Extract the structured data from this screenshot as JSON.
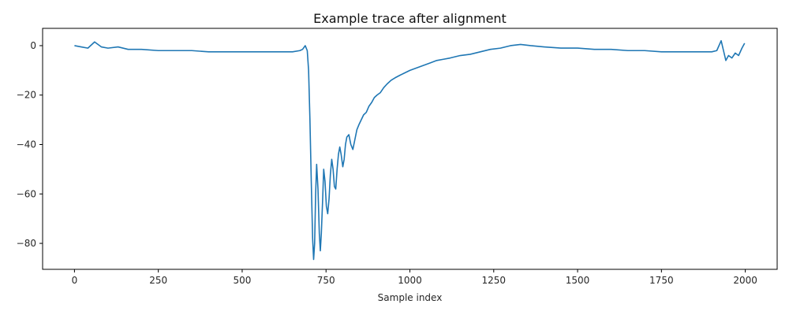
{
  "chart_data": {
    "type": "line",
    "title": "Example trace after alignment",
    "xlabel": "Sample index",
    "ylabel": "",
    "xlim": [
      -95,
      2095
    ],
    "ylim": [
      -90.5,
      7
    ],
    "grid": false,
    "xticks": [
      0,
      250,
      500,
      750,
      1000,
      1250,
      1500,
      1750,
      2000
    ],
    "yticks": [
      0,
      -20,
      -40,
      -60,
      -80
    ],
    "series": [
      {
        "color": "#1f77b4",
        "points": [
          [
            0,
            0
          ],
          [
            20,
            -0.5
          ],
          [
            40,
            -1
          ],
          [
            60,
            1.5
          ],
          [
            80,
            -0.5
          ],
          [
            100,
            -1
          ],
          [
            130,
            -0.5
          ],
          [
            160,
            -1.5
          ],
          [
            200,
            -1.5
          ],
          [
            250,
            -2
          ],
          [
            300,
            -2
          ],
          [
            350,
            -2
          ],
          [
            400,
            -2.5
          ],
          [
            450,
            -2.5
          ],
          [
            500,
            -2.5
          ],
          [
            550,
            -2.5
          ],
          [
            600,
            -2.5
          ],
          [
            650,
            -2.5
          ],
          [
            672,
            -2
          ],
          [
            680,
            -1.5
          ],
          [
            688,
            0
          ],
          [
            694,
            -2
          ],
          [
            698,
            -10
          ],
          [
            702,
            -30
          ],
          [
            706,
            -55
          ],
          [
            710,
            -78
          ],
          [
            713,
            -86.5
          ],
          [
            716,
            -80
          ],
          [
            719,
            -60
          ],
          [
            722,
            -48
          ],
          [
            726,
            -58
          ],
          [
            730,
            -76
          ],
          [
            733,
            -83
          ],
          [
            736,
            -76
          ],
          [
            740,
            -62
          ],
          [
            743,
            -50
          ],
          [
            747,
            -55
          ],
          [
            751,
            -65
          ],
          [
            755,
            -68
          ],
          [
            759,
            -62
          ],
          [
            763,
            -52
          ],
          [
            767,
            -46
          ],
          [
            771,
            -50
          ],
          [
            775,
            -57
          ],
          [
            779,
            -58
          ],
          [
            783,
            -50
          ],
          [
            787,
            -44
          ],
          [
            791,
            -41
          ],
          [
            795,
            -44
          ],
          [
            800,
            -49
          ],
          [
            804,
            -46
          ],
          [
            808,
            -40
          ],
          [
            812,
            -37
          ],
          [
            818,
            -36
          ],
          [
            824,
            -40
          ],
          [
            830,
            -42
          ],
          [
            836,
            -38
          ],
          [
            842,
            -34
          ],
          [
            848,
            -32
          ],
          [
            855,
            -30
          ],
          [
            862,
            -28
          ],
          [
            870,
            -27
          ],
          [
            878,
            -24.5
          ],
          [
            886,
            -23
          ],
          [
            894,
            -21
          ],
          [
            902,
            -20
          ],
          [
            912,
            -19
          ],
          [
            922,
            -17
          ],
          [
            932,
            -15.5
          ],
          [
            944,
            -14
          ],
          [
            956,
            -13
          ],
          [
            970,
            -12
          ],
          [
            985,
            -11
          ],
          [
            1000,
            -10
          ],
          [
            1020,
            -9
          ],
          [
            1040,
            -8
          ],
          [
            1060,
            -7
          ],
          [
            1080,
            -6
          ],
          [
            1100,
            -5.5
          ],
          [
            1120,
            -5
          ],
          [
            1150,
            -4
          ],
          [
            1180,
            -3.5
          ],
          [
            1210,
            -2.5
          ],
          [
            1240,
            -1.5
          ],
          [
            1270,
            -1
          ],
          [
            1300,
            0
          ],
          [
            1330,
            0.5
          ],
          [
            1360,
            0
          ],
          [
            1400,
            -0.5
          ],
          [
            1450,
            -1
          ],
          [
            1500,
            -1
          ],
          [
            1550,
            -1.5
          ],
          [
            1600,
            -1.5
          ],
          [
            1650,
            -2
          ],
          [
            1700,
            -2
          ],
          [
            1750,
            -2.5
          ],
          [
            1800,
            -2.5
          ],
          [
            1850,
            -2.5
          ],
          [
            1900,
            -2.5
          ],
          [
            1915,
            -2
          ],
          [
            1928,
            2
          ],
          [
            1935,
            -2
          ],
          [
            1942,
            -6
          ],
          [
            1950,
            -4
          ],
          [
            1960,
            -5
          ],
          [
            1970,
            -3
          ],
          [
            1980,
            -4
          ],
          [
            1990,
            -1
          ],
          [
            1998,
            1
          ]
        ]
      }
    ]
  }
}
